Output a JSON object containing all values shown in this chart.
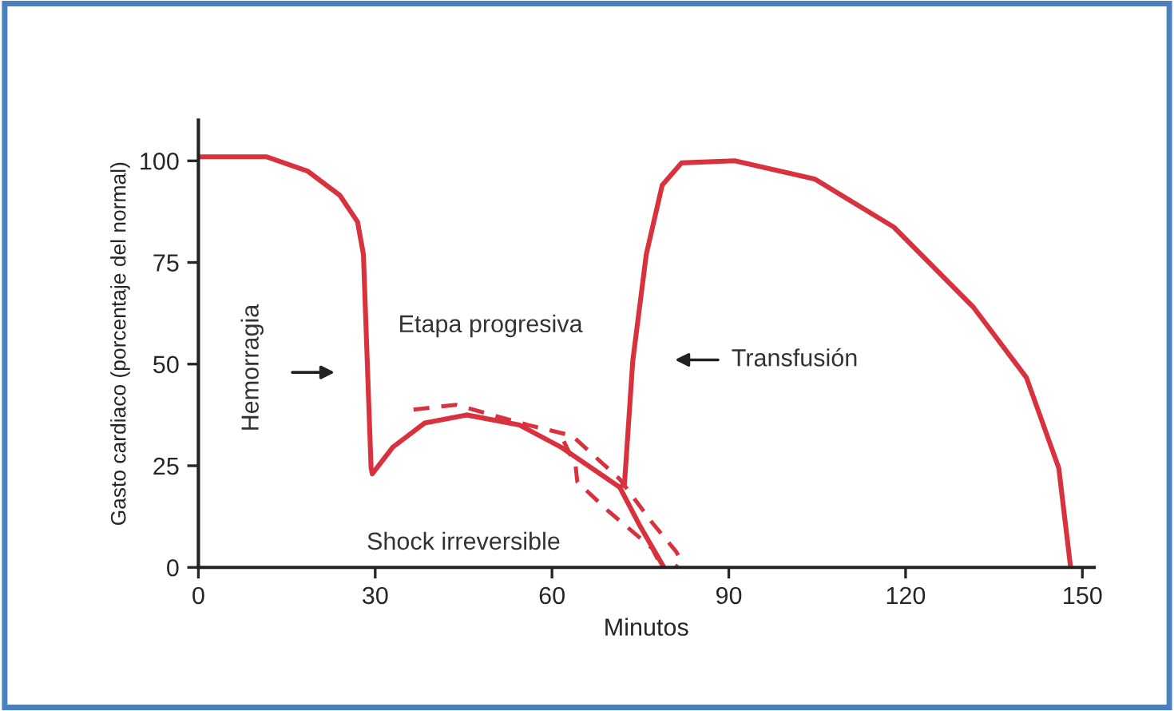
{
  "chart_data": {
    "type": "line",
    "xlabel": "Minutos",
    "ylabel": "Gasto cardiaco (porcentaje del normal)",
    "xlim": [
      0,
      152
    ],
    "ylim": [
      0,
      110
    ],
    "xticks": [
      0,
      30,
      60,
      90,
      120,
      150
    ],
    "yticks": [
      0,
      25,
      50,
      75,
      100
    ],
    "grid": false,
    "legend": false,
    "marker": "none",
    "series": [
      {
        "color": "#d8323f",
        "line_style": "solid",
        "x": [
          0,
          11.5,
          18.5,
          24,
          27,
          28,
          29.3,
          29.5,
          33,
          38.4,
          45.5,
          54.5,
          61.5,
          71.5,
          72.3,
          73.7,
          76,
          78.7,
          82,
          91,
          104.6,
          118,
          131.5,
          140.5,
          146,
          148
        ],
        "values": [
          101,
          101,
          97.5,
          91.5,
          85,
          77,
          24.5,
          23,
          29.6,
          35.5,
          37.5,
          35,
          29.6,
          19.7,
          20.5,
          50.7,
          77,
          94,
          99.5,
          100,
          95.5,
          83.7,
          64,
          46.7,
          24.4,
          0
        ]
      },
      {
        "color": "#d8323f",
        "line_style": "solid",
        "x": [
          71.5,
          75,
          79
        ],
        "values": [
          19.7,
          10,
          0
        ]
      },
      {
        "color": "#d8323f",
        "line_style": "dashed",
        "x": [
          36.5,
          43.7,
          56,
          63.4,
          71.5,
          77,
          81,
          82,
          81
        ],
        "values": [
          38.8,
          40,
          35,
          32.4,
          21.7,
          11,
          4,
          1.5,
          0
        ]
      },
      {
        "color": "#d8323f",
        "line_style": "dashed",
        "x": [
          62,
          64,
          64.3,
          69.6,
          77,
          78.4
        ],
        "values": [
          31,
          25,
          21,
          13.8,
          4.7,
          0.7
        ]
      }
    ],
    "annotations": [
      "Hemorragia",
      "Etapa progresiva",
      "Transfusión",
      "Shock irreversible"
    ]
  }
}
